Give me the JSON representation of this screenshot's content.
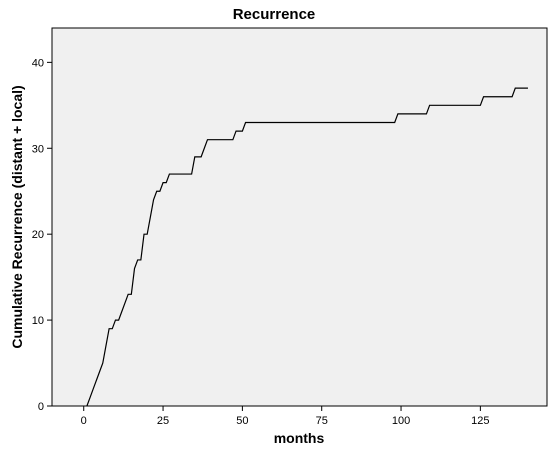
{
  "chart_data": {
    "type": "line",
    "title": "Recurrence",
    "xlabel": "months",
    "ylabel": "Cumulative Recurrence (distant + local)",
    "xlim": [
      -10,
      146
    ],
    "ylim": [
      0,
      44
    ],
    "x_ticks": [
      0,
      25,
      50,
      75,
      100,
      125
    ],
    "y_ticks": [
      0,
      10,
      20,
      30,
      40
    ],
    "grid": false,
    "legend": "none",
    "colors": {
      "plot_background": "#f0f0f0",
      "line": "#000000",
      "frame": "#000000"
    },
    "series": [
      {
        "x": [
          1,
          2,
          3,
          4,
          5,
          6,
          7,
          8,
          9,
          10,
          11,
          12,
          13,
          14,
          15,
          16,
          17,
          18,
          19,
          20,
          21,
          22,
          23,
          24,
          25,
          26,
          27,
          28,
          30,
          33,
          34,
          35,
          36,
          37,
          38,
          39,
          40,
          44,
          46,
          47,
          48,
          49,
          50,
          51,
          52,
          60,
          80,
          97,
          98,
          99,
          100,
          107,
          108,
          109,
          110,
          123,
          124,
          125,
          126,
          133,
          134,
          135,
          136,
          140
        ],
        "y": [
          0,
          1,
          2,
          3,
          4,
          5,
          7,
          9,
          9,
          10,
          10,
          11,
          12,
          13,
          13,
          16,
          17,
          17,
          20,
          20,
          22,
          24,
          25,
          25,
          26,
          26,
          27,
          27,
          27,
          27,
          27,
          29,
          29,
          29,
          30,
          31,
          31,
          31,
          31,
          31,
          32,
          32,
          32,
          33,
          33,
          33,
          33,
          33,
          33,
          34,
          34,
          34,
          34,
          35,
          35,
          35,
          35,
          35,
          36,
          36,
          36,
          36,
          37,
          37
        ]
      }
    ]
  }
}
